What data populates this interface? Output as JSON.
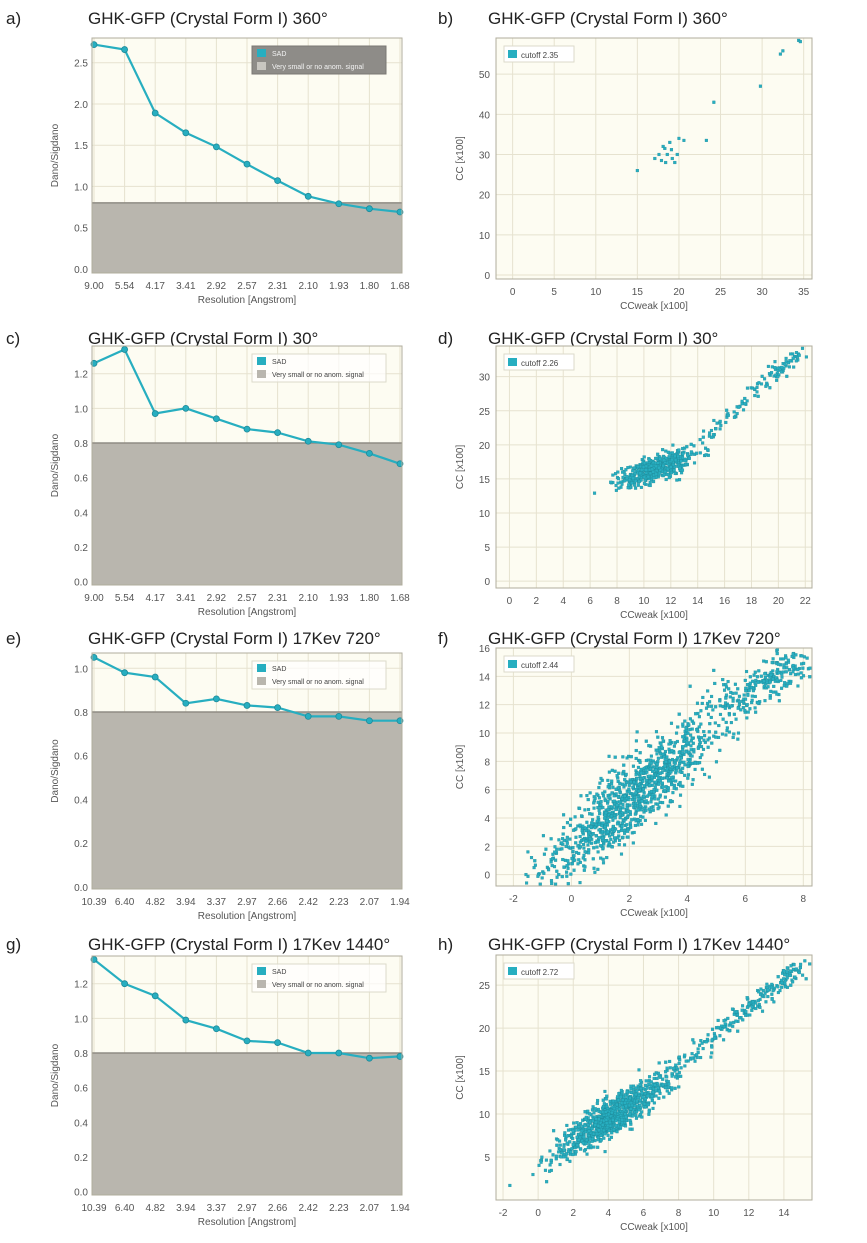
{
  "colors": {
    "plot_bg": "#fdfcf2",
    "grid": "#e6e2cf",
    "frame": "#b0ad9c",
    "series": "#27aec0",
    "series_dark": "#1f8a99",
    "threshold_fill": "#b9b6ae",
    "threshold_line": "#8f8c84",
    "text": "#555555",
    "title": "#222222"
  },
  "chart_data": [
    {
      "panel": "a)",
      "type": "line",
      "title": "GHK-GFP (Crystal Form I) 360°",
      "xlabel": "Resolution [Angstrom]",
      "ylabel": "Dano/Sigdano",
      "categories": [
        "9.00",
        "5.54",
        "4.17",
        "3.41",
        "2.92",
        "2.57",
        "2.31",
        "2.10",
        "1.93",
        "1.80",
        "1.68"
      ],
      "series": [
        {
          "name": "SAD",
          "values": [
            2.72,
            2.66,
            1.89,
            1.65,
            1.48,
            1.27,
            1.07,
            0.88,
            0.79,
            0.73,
            0.69
          ]
        }
      ],
      "threshold": {
        "value": 0.8,
        "label": "Very small or no anom. signal"
      },
      "ylim": [
        -0.05,
        2.8
      ],
      "yticks": [
        "0.0",
        "0.5",
        "1.0",
        "1.5",
        "2.0",
        "2.5"
      ],
      "ytick_values": [
        0,
        0.5,
        1,
        1.5,
        2,
        2.5
      ],
      "legend": {
        "position": "top-right",
        "dark": true
      }
    },
    {
      "panel": "b)",
      "type": "scatter",
      "title": "GHK-GFP (Crystal Form I) 360°",
      "xlabel": "CCweak [x100]",
      "ylabel": "CC [x100]",
      "legend_label": "cutoff 2.35",
      "xlim": [
        -2,
        36
      ],
      "ylim": [
        -1,
        59
      ],
      "xticks": [
        0,
        5,
        10,
        15,
        20,
        25,
        30,
        35
      ],
      "yticks": [
        0,
        10,
        20,
        30,
        40,
        50
      ],
      "points": [
        [
          15,
          26
        ],
        [
          17.1,
          29
        ],
        [
          17.6,
          30
        ],
        [
          18.1,
          32
        ],
        [
          18.4,
          28
        ],
        [
          18.6,
          30
        ],
        [
          18.9,
          33
        ],
        [
          19.2,
          29
        ],
        [
          19.5,
          28
        ],
        [
          19.8,
          30
        ],
        [
          20,
          34
        ],
        [
          20.6,
          33.5
        ],
        [
          18.3,
          31.5
        ],
        [
          17.9,
          28.5
        ],
        [
          19.1,
          31.2
        ],
        [
          23.3,
          33.5
        ],
        [
          24.2,
          43
        ],
        [
          29.8,
          47
        ],
        [
          32.2,
          55
        ],
        [
          32.5,
          55.8
        ],
        [
          34.4,
          58.4
        ],
        [
          34.6,
          58.1
        ]
      ]
    },
    {
      "panel": "c)",
      "type": "line",
      "title": "GHK-GFP (Crystal Form I) 30°",
      "xlabel": "Resolution [Angstrom]",
      "ylabel": "Dano/Sigdano",
      "categories": [
        "9.00",
        "5.54",
        "4.17",
        "3.41",
        "2.92",
        "2.57",
        "2.31",
        "2.10",
        "1.93",
        "1.80",
        "1.68"
      ],
      "series": [
        {
          "name": "SAD",
          "values": [
            1.26,
            1.34,
            0.97,
            1.0,
            0.94,
            0.88,
            0.86,
            0.81,
            0.79,
            0.74,
            0.68
          ]
        }
      ],
      "threshold": {
        "value": 0.8,
        "label": "Very small or no anom. signal"
      },
      "ylim": [
        -0.02,
        1.36
      ],
      "yticks": [
        "0.0",
        "0.2",
        "0.4",
        "0.6",
        "0.8",
        "1.0",
        "1.2"
      ],
      "ytick_values": [
        0,
        0.2,
        0.4,
        0.6,
        0.8,
        1.0,
        1.2
      ],
      "legend": {
        "position": "top-right",
        "dark": false
      }
    },
    {
      "panel": "d)",
      "type": "scatter",
      "title": "GHK-GFP (Crystal Form I) 30°",
      "xlabel": "CCweak [x100]",
      "ylabel": "CC [x100]",
      "legend_label": "cutoff 2.26",
      "xlim": [
        -1,
        22.5
      ],
      "ylim": [
        -1,
        34.5
      ],
      "xticks": [
        0,
        2,
        4,
        6,
        8,
        10,
        12,
        14,
        16,
        18,
        20,
        22
      ],
      "yticks": [
        0,
        5,
        10,
        15,
        20,
        25,
        30
      ],
      "cluster": {
        "x_center": 11,
        "x_sd": 1.4,
        "slope": 0.62,
        "intercept": 9.8,
        "y_sd": 0.9,
        "count": 520
      },
      "tail": {
        "from": [
          14,
          20
        ],
        "to": [
          21.8,
          34
        ],
        "count": 110,
        "sd": 0.5
      }
    },
    {
      "panel": "e)",
      "type": "line",
      "title": "GHK-GFP (Crystal Form I) 17Kev 720°",
      "xlabel": "Resolution [Angstrom]",
      "ylabel": "Dano/Sigdano",
      "categories": [
        "10.39",
        "6.40",
        "4.82",
        "3.94",
        "3.37",
        "2.97",
        "2.66",
        "2.42",
        "2.23",
        "2.07",
        "1.94"
      ],
      "series": [
        {
          "name": "SAD",
          "values": [
            1.05,
            0.98,
            0.96,
            0.84,
            0.86,
            0.83,
            0.82,
            0.78,
            0.78,
            0.76,
            0.76
          ]
        }
      ],
      "threshold": {
        "value": 0.8,
        "label": "Very small or no anom. signal"
      },
      "ylim": [
        -0.01,
        1.07
      ],
      "yticks": [
        "0.0",
        "0.2",
        "0.4",
        "0.6",
        "0.8",
        "1.0"
      ],
      "ytick_values": [
        0,
        0.2,
        0.4,
        0.6,
        0.8,
        1.0
      ],
      "legend": {
        "position": "top-right",
        "dark": false
      }
    },
    {
      "panel": "f)",
      "type": "scatter",
      "title": "GHK-GFP (Crystal Form I) 17Kev 720°",
      "xlabel": "CCweak [x100]",
      "ylabel": "CC [x100]",
      "legend_label": "cutoff 2.44",
      "xlim": [
        -2.6,
        8.3
      ],
      "ylim": [
        -0.8,
        16
      ],
      "xticks": [
        -2,
        0,
        2,
        4,
        6,
        8
      ],
      "yticks": [
        0,
        2,
        4,
        6,
        8,
        10,
        12,
        14,
        16
      ],
      "cluster": {
        "x_center": 2.2,
        "x_sd": 1.6,
        "slope": 1.75,
        "intercept": 1.8,
        "y_sd": 1.3,
        "count": 1100
      },
      "tail": {
        "from": [
          5.2,
          11.5
        ],
        "to": [
          7.9,
          15.3
        ],
        "count": 200,
        "sd": 0.55
      }
    },
    {
      "panel": "g)",
      "type": "line",
      "title": "GHK-GFP (Crystal Form I) 17Kev 1440°",
      "xlabel": "Resolution [Angstrom]",
      "ylabel": "Dano/Sigdano",
      "categories": [
        "10.39",
        "6.40",
        "4.82",
        "3.94",
        "3.37",
        "2.97",
        "2.66",
        "2.42",
        "2.23",
        "2.07",
        "1.94"
      ],
      "series": [
        {
          "name": "SAD",
          "values": [
            1.34,
            1.2,
            1.13,
            0.99,
            0.94,
            0.87,
            0.86,
            0.8,
            0.8,
            0.77,
            0.78
          ]
        }
      ],
      "threshold": {
        "value": 0.8,
        "label": "Very small or no anom. signal"
      },
      "ylim": [
        -0.02,
        1.36
      ],
      "yticks": [
        "0.0",
        "0.2",
        "0.4",
        "0.6",
        "0.8",
        "1.0",
        "1.2"
      ],
      "ytick_values": [
        0,
        0.2,
        0.4,
        0.6,
        0.8,
        1.0,
        1.2
      ],
      "legend": {
        "position": "top-right",
        "dark": false
      }
    },
    {
      "panel": "h)",
      "type": "scatter",
      "title": "GHK-GFP (Crystal Form I) 17Kev 1440°",
      "xlabel": "CCweak [x100]",
      "ylabel": "CC [x100]",
      "legend_label": "cutoff 2.72",
      "xlim": [
        -2.4,
        15.6
      ],
      "ylim": [
        0,
        28.5
      ],
      "xticks": [
        -2,
        0,
        2,
        4,
        6,
        8,
        10,
        12,
        14
      ],
      "yticks": [
        5,
        10,
        15,
        20,
        25
      ],
      "cluster": {
        "x_center": 4.2,
        "x_sd": 1.5,
        "slope": 1.25,
        "intercept": 4.4,
        "y_sd": 1.1,
        "count": 900
      },
      "tail": {
        "from": [
          6.5,
          13
        ],
        "to": [
          15,
          27.3
        ],
        "count": 230,
        "sd": 0.6
      }
    }
  ]
}
